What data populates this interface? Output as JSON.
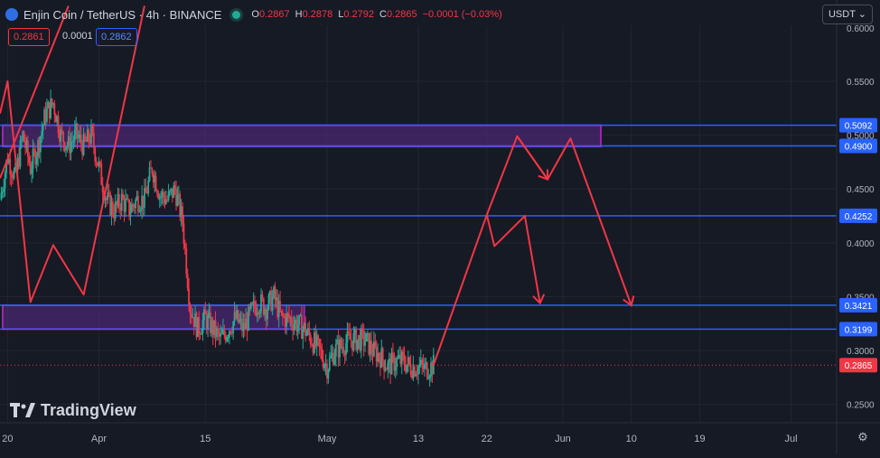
{
  "header": {
    "symbol": "Enjin Coin / TetherUS · 4h · BINANCE",
    "o_label": "O",
    "o": "0.2867",
    "h_label": "H",
    "h": "0.2878",
    "l_label": "L",
    "l": "0.2792",
    "c_label": "C",
    "c": "0.2865",
    "change": "−0.0001 (−0.03%)",
    "bid": "0.2861",
    "spread": "0.0001",
    "ask": "0.2862",
    "currency": "USDT"
  },
  "logo_text": "TradingView",
  "colors": {
    "background": "#161a25",
    "level_line": "#2962ff",
    "zone_fill": "#4a2770",
    "zone_border": "#9c27b0",
    "projection": "#f23645",
    "candle_up": "#22ab94",
    "candle_down": "#f23645",
    "current_price": "#f23645"
  },
  "chart_data": {
    "type": "candlestick",
    "title": "Enjin Coin / TetherUS · 4h · BINANCE",
    "y_ticks": [
      0.25,
      0.3,
      0.35,
      0.4,
      0.45,
      0.5,
      0.55
    ],
    "y_tick_labels": [
      "0.2500",
      "0.3000",
      "0.3500",
      "0.4000",
      "0.4500",
      "0.5000",
      "0.5500"
    ],
    "y_top_label": "0.6000",
    "ylim": [
      0.233,
      0.602
    ],
    "x_ticks": [
      "2024-03-20",
      "2024-04-01",
      "2024-04-15",
      "2024-05-01",
      "2024-05-13",
      "2024-05-22",
      "2024-06-01",
      "2024-06-10",
      "2024-06-19",
      "2024-07-01"
    ],
    "x_tick_labels": [
      "20",
      "Apr",
      "15",
      "May",
      "13",
      "22",
      "Jun",
      "10",
      "19",
      "Jul"
    ],
    "xlim": [
      "2024-03-19",
      "2024-07-07"
    ],
    "price_levels": [
      {
        "label": "0.5092",
        "value": 0.5092
      },
      {
        "label": "0.4900",
        "value": 0.49
      },
      {
        "label": "0.4252",
        "value": 0.4252
      },
      {
        "label": "0.3421",
        "value": 0.3421
      },
      {
        "label": "0.3199",
        "value": 0.3199
      }
    ],
    "current_price": {
      "label": "0.2865",
      "value": 0.2865
    },
    "zones": [
      {
        "from": "2024-03-19",
        "to": "2024-06-06",
        "low": 0.4895,
        "high": 0.5092
      },
      {
        "from": "2024-03-19",
        "to": "2024-04-28",
        "low": 0.32,
        "high": 0.3421
      }
    ],
    "price_series": [
      {
        "t": "2024-03-19",
        "p": 0.44
      },
      {
        "t": "2024-03-20",
        "p": 0.48
      },
      {
        "t": "2024-03-21",
        "p": 0.46
      },
      {
        "t": "2024-03-22",
        "p": 0.5
      },
      {
        "t": "2024-03-23",
        "p": 0.47
      },
      {
        "t": "2024-03-24",
        "p": 0.49
      },
      {
        "t": "2024-03-25",
        "p": 0.52
      },
      {
        "t": "2024-03-26",
        "p": 0.53
      },
      {
        "t": "2024-03-27",
        "p": 0.5
      },
      {
        "t": "2024-03-28",
        "p": 0.49
      },
      {
        "t": "2024-03-29",
        "p": 0.5
      },
      {
        "t": "2024-03-30",
        "p": 0.49
      },
      {
        "t": "2024-03-31",
        "p": 0.5
      },
      {
        "t": "2024-04-01",
        "p": 0.47
      },
      {
        "t": "2024-04-02",
        "p": 0.44
      },
      {
        "t": "2024-04-03",
        "p": 0.43
      },
      {
        "t": "2024-04-04",
        "p": 0.44
      },
      {
        "t": "2024-04-05",
        "p": 0.43
      },
      {
        "t": "2024-04-06",
        "p": 0.44
      },
      {
        "t": "2024-04-07",
        "p": 0.44
      },
      {
        "t": "2024-04-08",
        "p": 0.47
      },
      {
        "t": "2024-04-09",
        "p": 0.445
      },
      {
        "t": "2024-04-10",
        "p": 0.44
      },
      {
        "t": "2024-04-11",
        "p": 0.45
      },
      {
        "t": "2024-04-12",
        "p": 0.42
      },
      {
        "t": "2024-04-13",
        "p": 0.34
      },
      {
        "t": "2024-04-14",
        "p": 0.32
      },
      {
        "t": "2024-04-15",
        "p": 0.33
      },
      {
        "t": "2024-04-16",
        "p": 0.32
      },
      {
        "t": "2024-04-17",
        "p": 0.31
      },
      {
        "t": "2024-04-18",
        "p": 0.32
      },
      {
        "t": "2024-04-19",
        "p": 0.33
      },
      {
        "t": "2024-04-20",
        "p": 0.32
      },
      {
        "t": "2024-04-21",
        "p": 0.335
      },
      {
        "t": "2024-04-22",
        "p": 0.345
      },
      {
        "t": "2024-04-23",
        "p": 0.34
      },
      {
        "t": "2024-04-24",
        "p": 0.35
      },
      {
        "t": "2024-04-25",
        "p": 0.33
      },
      {
        "t": "2024-04-26",
        "p": 0.33
      },
      {
        "t": "2024-04-27",
        "p": 0.325
      },
      {
        "t": "2024-04-28",
        "p": 0.32
      },
      {
        "t": "2024-04-29",
        "p": 0.31
      },
      {
        "t": "2024-04-30",
        "p": 0.3
      },
      {
        "t": "2024-05-01",
        "p": 0.285
      },
      {
        "t": "2024-05-02",
        "p": 0.3
      },
      {
        "t": "2024-05-03",
        "p": 0.305
      },
      {
        "t": "2024-05-04",
        "p": 0.31
      },
      {
        "t": "2024-05-05",
        "p": 0.31
      },
      {
        "t": "2024-05-06",
        "p": 0.31
      },
      {
        "t": "2024-05-07",
        "p": 0.3
      },
      {
        "t": "2024-05-08",
        "p": 0.295
      },
      {
        "t": "2024-05-09",
        "p": 0.285
      },
      {
        "t": "2024-05-10",
        "p": 0.29
      },
      {
        "t": "2024-05-11",
        "p": 0.29
      },
      {
        "t": "2024-05-12",
        "p": 0.285
      },
      {
        "t": "2024-05-13",
        "p": 0.285
      },
      {
        "t": "2024-05-14",
        "p": 0.283
      },
      {
        "t": "2024-05-15",
        "p": 0.2865
      }
    ],
    "projection_path": [
      {
        "t": "2024-05-15",
        "p": 0.2865
      },
      {
        "t": "2024-05-22",
        "p": 0.426
      },
      {
        "t": "2024-05-23",
        "p": 0.397
      },
      {
        "t": "2024-05-27",
        "p": 0.425
      },
      {
        "t": "2024-05-29",
        "p": 0.344
      }
    ],
    "projection_path_2": [
      {
        "t": "2024-05-22",
        "p": 0.426
      },
      {
        "t": "2024-05-26",
        "p": 0.499
      },
      {
        "t": "2024-05-30",
        "p": 0.459
      },
      {
        "t": "2024-06-02",
        "p": 0.497
      },
      {
        "t": "2024-06-10",
        "p": 0.342
      }
    ],
    "projection_path_3": [
      {
        "t": "2024-03-19",
        "p": 0.52
      },
      {
        "t": "2024-03-20",
        "p": 0.55
      },
      {
        "t": "2024-03-23",
        "p": 0.345
      },
      {
        "t": "2024-03-26",
        "p": 0.398
      },
      {
        "t": "2024-03-30",
        "p": 0.352
      },
      {
        "t": "2024-04-07",
        "p": 0.62
      }
    ],
    "projection_path_4": [
      {
        "t": "2024-03-19",
        "p": 0.46
      },
      {
        "t": "2024-03-28",
        "p": 0.62
      }
    ]
  }
}
